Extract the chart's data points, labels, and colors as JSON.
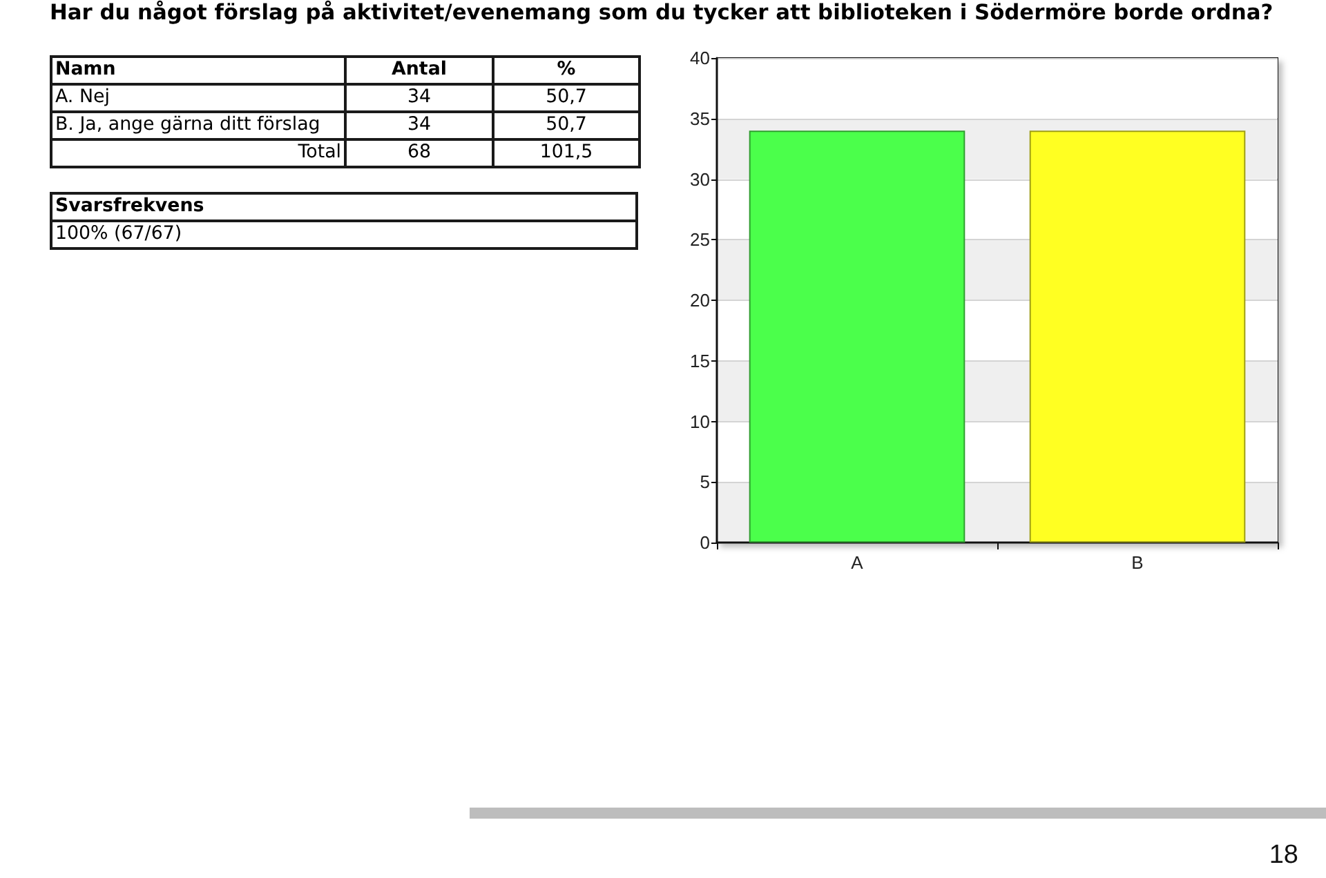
{
  "chart_data": [
    {
      "type": "other",
      "title": "Har du något förslag på aktivitet/evenemang som du tycker att biblioteken i Södermöre borde ordna?",
      "annotations": [
        "Namn",
        "Antal",
        "%",
        "A. Nej",
        "34",
        "50,7",
        "B. Ja, ange gärna ditt förslag",
        "34",
        "50,7",
        "Total",
        "68",
        "101,5",
        "Svarsfrekvens",
        "100% (67/67)"
      ]
    },
    {
      "type": "bar",
      "categories": [
        "A",
        "B"
      ],
      "values": [
        34,
        34
      ],
      "colors": [
        "#4bff4b",
        "#ffff22"
      ],
      "ylim": [
        0,
        40
      ],
      "yticks": [
        0,
        5,
        10,
        15,
        20,
        25,
        30,
        35,
        40
      ],
      "grid": "y",
      "annotations": [
        "18"
      ]
    }
  ]
}
